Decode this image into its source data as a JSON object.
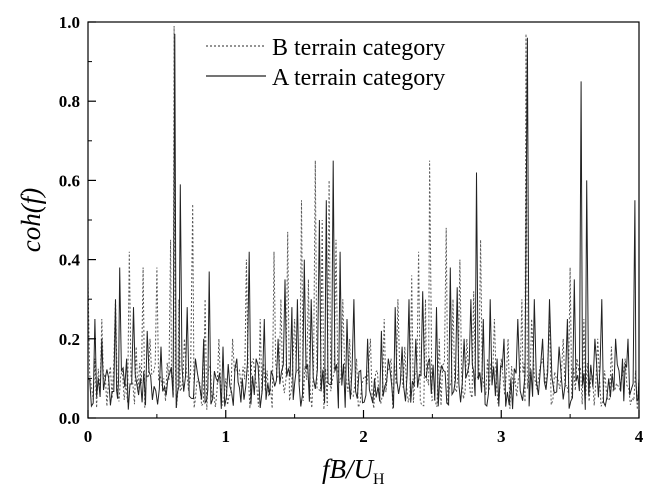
{
  "chart_data": {
    "type": "line",
    "title": "",
    "xlabel": {
      "main": "fB/U",
      "subscript": "H"
    },
    "ylabel": "coh(f)",
    "xlim": [
      0,
      4
    ],
    "ylim": [
      0,
      1.0
    ],
    "x_ticks": [
      0,
      1,
      2,
      3,
      4
    ],
    "x_tick_labels": [
      "0",
      "1",
      "2",
      "3",
      "4"
    ],
    "y_ticks": [
      0.0,
      0.2,
      0.4,
      0.6,
      0.8,
      1.0
    ],
    "y_tick_labels": [
      "0.0",
      "0.2",
      "0.4",
      "0.6",
      "0.8",
      "1.0"
    ],
    "grid": false,
    "legend_position": "top-center",
    "series": [
      {
        "name": "B  terrain category",
        "style": "dotted",
        "color": "#555555",
        "peaks": [
          [
            0.0,
            0.35
          ],
          [
            0.05,
            0.15
          ],
          [
            0.1,
            0.25
          ],
          [
            0.15,
            0.1
          ],
          [
            0.2,
            0.3
          ],
          [
            0.25,
            0.12
          ],
          [
            0.3,
            0.42
          ],
          [
            0.35,
            0.18
          ],
          [
            0.4,
            0.38
          ],
          [
            0.45,
            0.2
          ],
          [
            0.5,
            0.38
          ],
          [
            0.55,
            0.1
          ],
          [
            0.6,
            0.45
          ],
          [
            0.625,
            0.99
          ],
          [
            0.66,
            0.3
          ],
          [
            0.7,
            0.2
          ],
          [
            0.76,
            0.54
          ],
          [
            0.8,
            0.1
          ],
          [
            0.85,
            0.3
          ],
          [
            0.9,
            0.05
          ],
          [
            0.95,
            0.2
          ],
          [
            1.0,
            0.1
          ],
          [
            1.05,
            0.2
          ],
          [
            1.1,
            0.12
          ],
          [
            1.15,
            0.4
          ],
          [
            1.2,
            0.15
          ],
          [
            1.25,
            0.25
          ],
          [
            1.3,
            0.12
          ],
          [
            1.35,
            0.42
          ],
          [
            1.4,
            0.3
          ],
          [
            1.45,
            0.47
          ],
          [
            1.5,
            0.25
          ],
          [
            1.55,
            0.55
          ],
          [
            1.6,
            0.35
          ],
          [
            1.65,
            0.65
          ],
          [
            1.7,
            0.5
          ],
          [
            1.75,
            0.6
          ],
          [
            1.8,
            0.45
          ],
          [
            1.85,
            0.3
          ],
          [
            1.9,
            0.2
          ],
          [
            1.95,
            0.15
          ],
          [
            2.0,
            0.1
          ],
          [
            2.05,
            0.2
          ],
          [
            2.1,
            0.12
          ],
          [
            2.15,
            0.25
          ],
          [
            2.2,
            0.15
          ],
          [
            2.25,
            0.3
          ],
          [
            2.3,
            0.18
          ],
          [
            2.35,
            0.36
          ],
          [
            2.4,
            0.42
          ],
          [
            2.45,
            0.3
          ],
          [
            2.48,
            0.65
          ],
          [
            2.55,
            0.2
          ],
          [
            2.6,
            0.48
          ],
          [
            2.65,
            0.3
          ],
          [
            2.7,
            0.4
          ],
          [
            2.75,
            0.2
          ],
          [
            2.8,
            0.32
          ],
          [
            2.85,
            0.45
          ],
          [
            2.9,
            0.15
          ],
          [
            2.95,
            0.25
          ],
          [
            3.0,
            0.15
          ],
          [
            3.05,
            0.2
          ],
          [
            3.1,
            0.1
          ],
          [
            3.15,
            0.3
          ],
          [
            3.18,
            0.97
          ],
          [
            3.22,
            0.25
          ],
          [
            3.3,
            0.15
          ],
          [
            3.35,
            0.25
          ],
          [
            3.4,
            0.1
          ],
          [
            3.45,
            0.2
          ],
          [
            3.5,
            0.38
          ],
          [
            3.55,
            0.15
          ],
          [
            3.6,
            0.25
          ],
          [
            3.65,
            0.1
          ],
          [
            3.7,
            0.2
          ],
          [
            3.75,
            0.12
          ],
          [
            3.8,
            0.18
          ],
          [
            3.85,
            0.08
          ],
          [
            3.9,
            0.15
          ],
          [
            3.95,
            0.05
          ],
          [
            4.0,
            0.1
          ]
        ]
      },
      {
        "name": "A  terrain category",
        "style": "solid",
        "color": "#222222",
        "peaks": [
          [
            0.0,
            0.1
          ],
          [
            0.05,
            0.25
          ],
          [
            0.1,
            0.2
          ],
          [
            0.15,
            0.1
          ],
          [
            0.2,
            0.3
          ],
          [
            0.23,
            0.38
          ],
          [
            0.28,
            0.15
          ],
          [
            0.33,
            0.28
          ],
          [
            0.38,
            0.1
          ],
          [
            0.43,
            0.22
          ],
          [
            0.48,
            0.08
          ],
          [
            0.53,
            0.18
          ],
          [
            0.58,
            0.1
          ],
          [
            0.63,
            0.97
          ],
          [
            0.67,
            0.59
          ],
          [
            0.72,
            0.28
          ],
          [
            0.78,
            0.15
          ],
          [
            0.84,
            0.2
          ],
          [
            0.88,
            0.37
          ],
          [
            0.93,
            0.1
          ],
          [
            0.98,
            0.18
          ],
          [
            1.03,
            0.08
          ],
          [
            1.08,
            0.15
          ],
          [
            1.12,
            0.1
          ],
          [
            1.17,
            0.42
          ],
          [
            1.22,
            0.15
          ],
          [
            1.28,
            0.25
          ],
          [
            1.33,
            0.12
          ],
          [
            1.38,
            0.2
          ],
          [
            1.43,
            0.35
          ],
          [
            1.48,
            0.28
          ],
          [
            1.52,
            0.3
          ],
          [
            1.57,
            0.4
          ],
          [
            1.62,
            0.3
          ],
          [
            1.68,
            0.5
          ],
          [
            1.73,
            0.55
          ],
          [
            1.78,
            0.65
          ],
          [
            1.83,
            0.42
          ],
          [
            1.88,
            0.25
          ],
          [
            1.93,
            0.3
          ],
          [
            1.98,
            0.12
          ],
          [
            2.03,
            0.2
          ],
          [
            2.08,
            0.1
          ],
          [
            2.13,
            0.22
          ],
          [
            2.18,
            0.15
          ],
          [
            2.23,
            0.28
          ],
          [
            2.28,
            0.18
          ],
          [
            2.33,
            0.3
          ],
          [
            2.38,
            0.2
          ],
          [
            2.43,
            0.32
          ],
          [
            2.48,
            0.15
          ],
          [
            2.53,
            0.28
          ],
          [
            2.58,
            0.12
          ],
          [
            2.63,
            0.38
          ],
          [
            2.68,
            0.33
          ],
          [
            2.73,
            0.2
          ],
          [
            2.78,
            0.3
          ],
          [
            2.82,
            0.62
          ],
          [
            2.87,
            0.25
          ],
          [
            2.92,
            0.3
          ],
          [
            2.97,
            0.15
          ],
          [
            3.02,
            0.2
          ],
          [
            3.07,
            0.1
          ],
          [
            3.12,
            0.25
          ],
          [
            3.19,
            0.96
          ],
          [
            3.24,
            0.3
          ],
          [
            3.3,
            0.2
          ],
          [
            3.35,
            0.3
          ],
          [
            3.42,
            0.18
          ],
          [
            3.48,
            0.25
          ],
          [
            3.53,
            0.35
          ],
          [
            3.58,
            0.85
          ],
          [
            3.62,
            0.6
          ],
          [
            3.68,
            0.2
          ],
          [
            3.73,
            0.3
          ],
          [
            3.78,
            0.1
          ],
          [
            3.83,
            0.2
          ],
          [
            3.88,
            0.15
          ],
          [
            3.92,
            0.2
          ],
          [
            3.97,
            0.55
          ],
          [
            4.0,
            0.1
          ]
        ]
      }
    ]
  }
}
